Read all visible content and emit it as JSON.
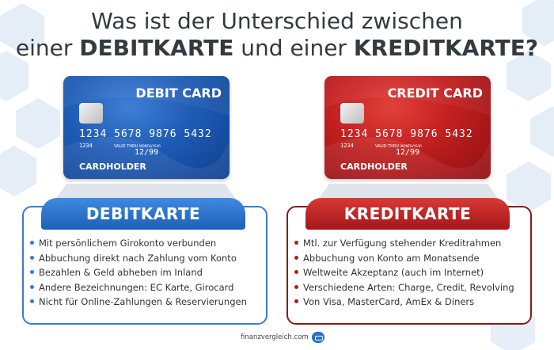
{
  "title": {
    "line1": "Was ist der Unterschied zwischen",
    "line2_pre": "einer ",
    "line2_bold1": "DEBITKARTE",
    "line2_mid": " und einer ",
    "line2_bold2": "KREDITKARTE?"
  },
  "debit_card": {
    "name": "DEBIT CARD",
    "number": "1234  5678  9876  5432",
    "small_number": "1234",
    "valid_label": "VALID THRU",
    "month_label": "MONTH/YEAR",
    "expiry": "12/99",
    "holder": "CARDHOLDER",
    "color": "#1e5bb5"
  },
  "credit_card": {
    "name": "CREDIT CARD",
    "number": "1234  5678  9876  5432",
    "small_number": "1234",
    "valid_label": "VALID THRU",
    "month_label": "MONTH/YEAR",
    "expiry": "12/99",
    "holder": "CARDHOLDER",
    "color": "#c11f1f"
  },
  "debit_box": {
    "heading": "DEBITKARTE",
    "items": [
      "Mit persönlichem Girokonto verbunden",
      "Abbuchung direkt nach Zahlung vom Konto",
      "Bezahlen & Geld abheben im Inland",
      "Andere Bezeichnungen: EC Karte, Girocard",
      "Nicht für Online-Zahlungen & Reservierungen"
    ]
  },
  "credit_box": {
    "heading": "KREDITKARTE",
    "items": [
      "Mtl. zur Verfügung stehender Kreditrahmen",
      "Abbuchung von Konto am Monatsende",
      "Weltweite Akzeptanz (auch im Internet)",
      "Verschiedene Arten: Charge, Credit, Revolving",
      "Von Visa, MasterCard, AmEx & Diners"
    ]
  },
  "footer": {
    "brand": "finanzvergleich.com",
    "icon": "finanzvergleich-logo-icon"
  }
}
